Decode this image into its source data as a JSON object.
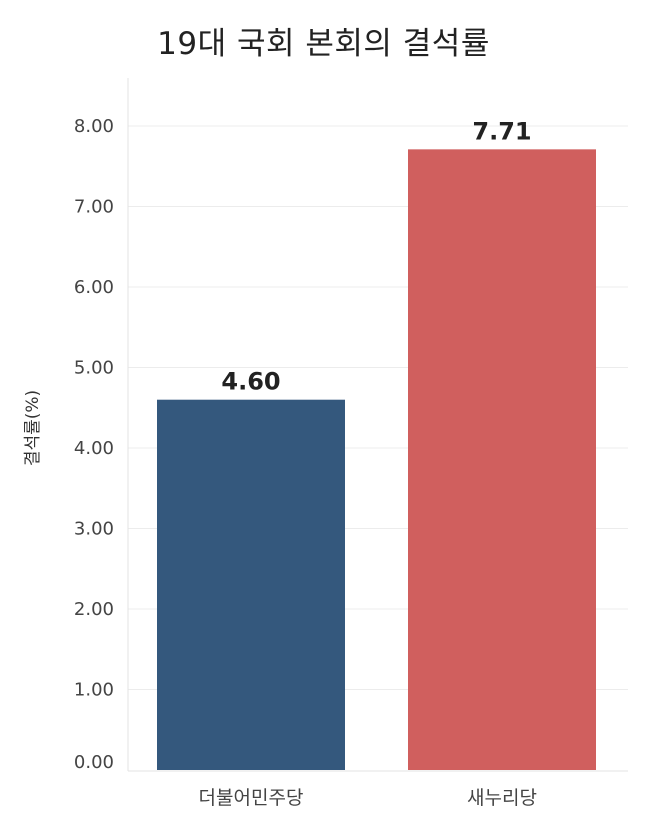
{
  "chart_data": {
    "type": "bar",
    "title": "19대 국회 본회의 결석률",
    "ylabel": "결석률(%)",
    "xlabel": "",
    "categories": [
      "더불어민주당",
      "새누리당"
    ],
    "values": [
      4.6,
      7.71
    ],
    "value_labels": [
      "4.60",
      "7.71"
    ],
    "colors": [
      "#34587d",
      "#d05f5e"
    ],
    "ylim": [
      0,
      8.5
    ],
    "yticks": [
      0,
      1,
      2,
      3,
      4,
      5,
      6,
      7,
      8
    ],
    "ytick_labels": [
      "0.00",
      "1.00",
      "2.00",
      "3.00",
      "4.00",
      "5.00",
      "6.00",
      "7.00",
      "8.00"
    ],
    "grid": true,
    "legend": "none"
  }
}
